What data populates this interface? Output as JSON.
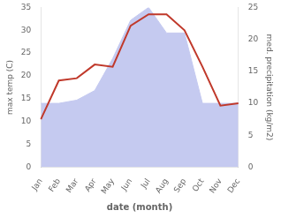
{
  "chart_data": {
    "type": "line",
    "xlabel": "date (month)",
    "ylabel": "max temp (C)",
    "y2label": "med. precipitation (kg/m2)",
    "categories": [
      "Jan",
      "Feb",
      "Mar",
      "Apr",
      "May",
      "Jun",
      "Jul",
      "Aug",
      "Sep",
      "Oct",
      "Nov",
      "Dec"
    ],
    "series": [
      {
        "type": "area",
        "axis": "y2",
        "color": "#c5caf0",
        "values": [
          10.0,
          10.0,
          10.5,
          12.0,
          17.0,
          23.0,
          25.0,
          21.0,
          21.0,
          10.0,
          10.0,
          10.0
        ]
      },
      {
        "type": "line",
        "color": "#c0392b",
        "values": [
          10.5,
          19.0,
          19.5,
          22.5,
          22.0,
          31.0,
          33.5,
          33.5,
          30.0,
          22.0,
          13.5,
          14.0
        ]
      }
    ],
    "ylim": [
      0,
      35
    ],
    "yticks": [
      0,
      5,
      10,
      15,
      20,
      25,
      30,
      35
    ],
    "y2lim": [
      0,
      25
    ],
    "y2ticks": [
      0,
      5,
      10,
      15,
      20,
      25
    ],
    "grid": false
  }
}
